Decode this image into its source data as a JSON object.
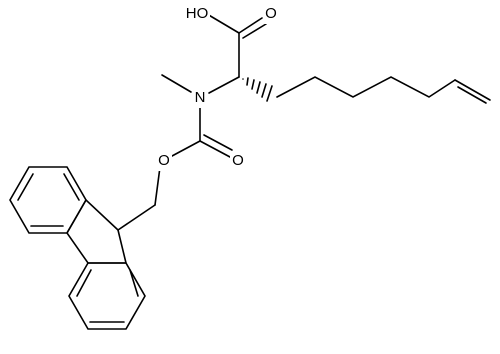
{
  "atoms": [
    {
      "label": "HO"
    },
    {
      "label": "O"
    },
    {
      "label": "N"
    },
    {
      "label": "O"
    },
    {
      "label": "O"
    }
  ]
}
